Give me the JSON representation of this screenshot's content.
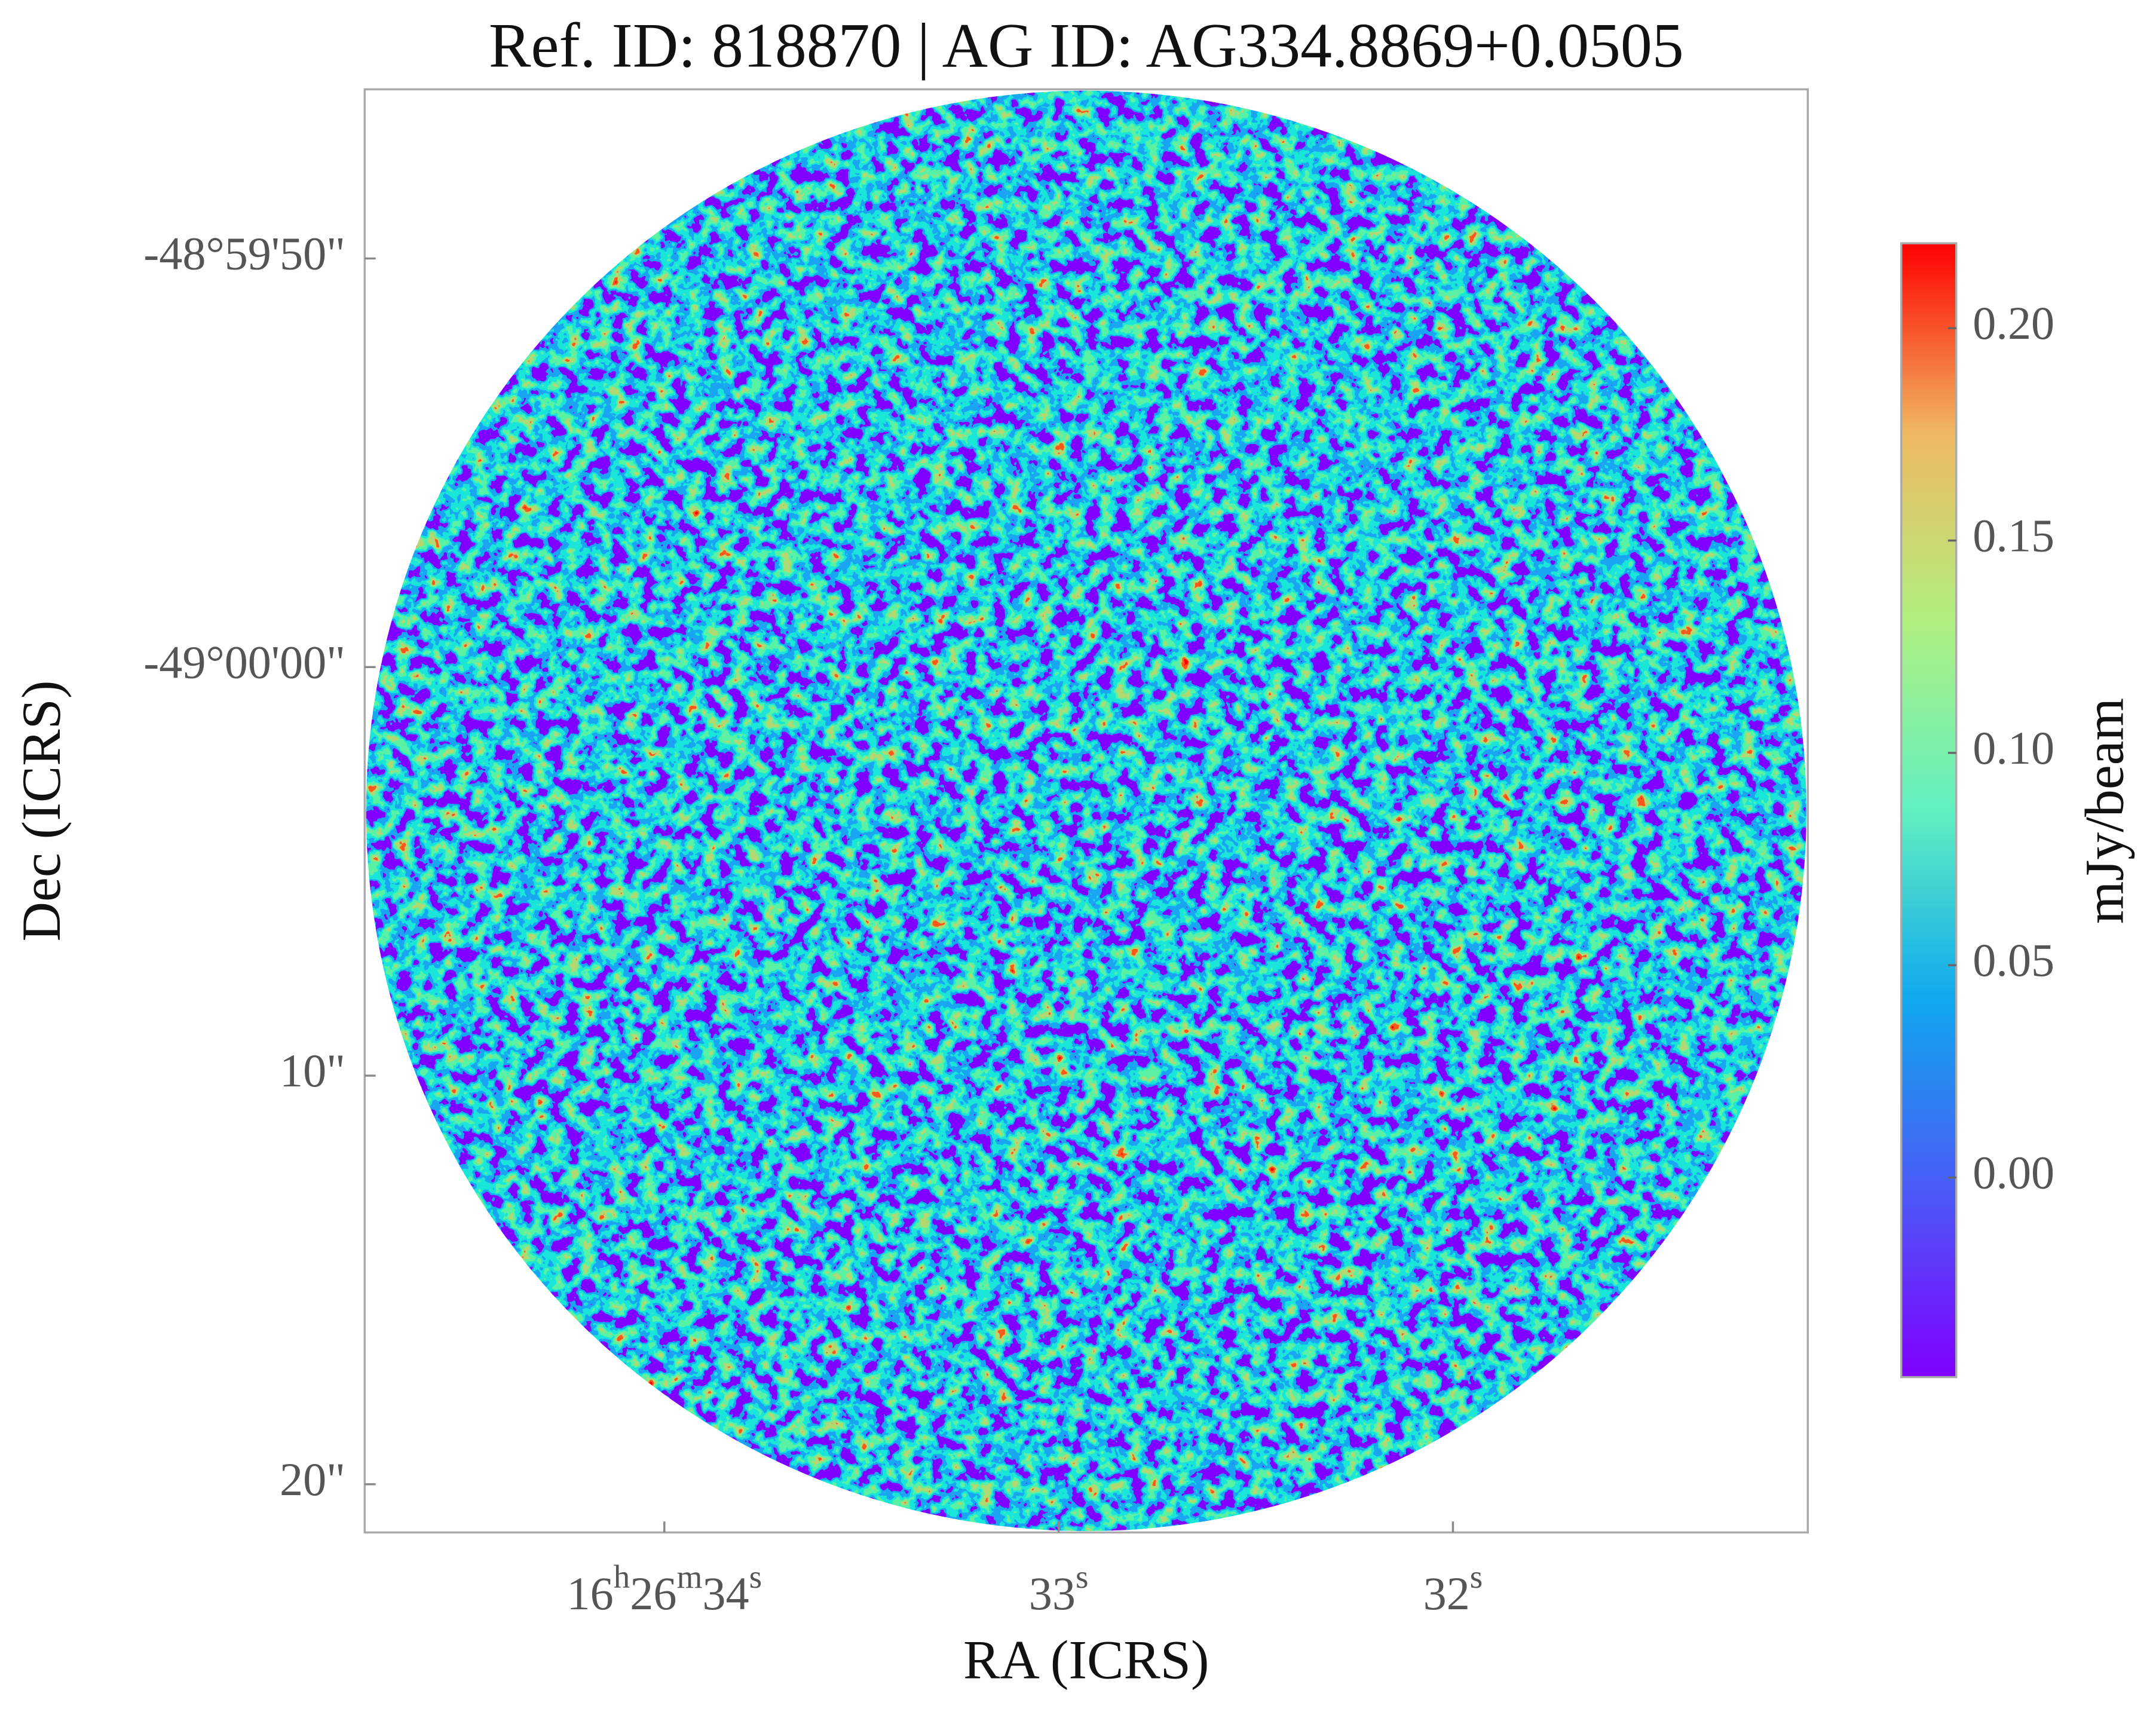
{
  "chart_data": {
    "type": "image",
    "title": "Ref. ID: 818870 | AG ID: AG334.8869+0.0505",
    "xlabel": "RA (ICRS)",
    "ylabel": "Dec (ICRS)",
    "xlim": [
      34.76,
      31.1
    ],
    "xticks": [
      {
        "value": 34,
        "label": "16h26m34s"
      },
      {
        "value": 33,
        "label": "33s"
      },
      {
        "value": 32,
        "label": "32s"
      }
    ],
    "ylim": [
      -14.14,
      21.18
    ],
    "yticks": [
      {
        "value": -10,
        "label": "-48°59'50\""
      },
      {
        "value": 0,
        "label": "-49°00'00\""
      },
      {
        "value": 10,
        "label": "10\""
      },
      {
        "value": 20,
        "label": "20\""
      }
    ],
    "colorbar": {
      "label": "mJy/beam",
      "lim": [
        -0.047,
        0.22
      ],
      "ticks": [
        {
          "value": 0,
          "label": "0.00"
        },
        {
          "value": 0.05,
          "label": "0.05"
        },
        {
          "value": 0.1,
          "label": "0.10"
        },
        {
          "value": 0.15,
          "label": "0.15"
        },
        {
          "value": 0.2,
          "label": "0.20"
        }
      ],
      "colormap": [
        "#8000ff",
        "#4a5cf7",
        "#10a8ee",
        "#60f0c0",
        "#b0f080",
        "#f0b860",
        "#ff0000"
      ]
    }
  }
}
